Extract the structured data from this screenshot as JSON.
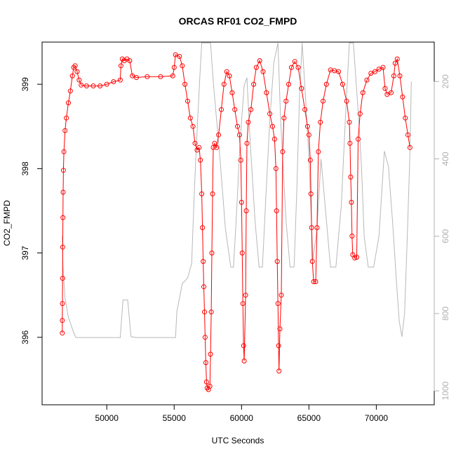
{
  "chart_data": {
    "type": "scatter",
    "title": "ORCAS RF01 CO2_FMPD",
    "xlabel": "UTC Seconds",
    "ylabel": "CO2_FMPD",
    "xlim": [
      45200,
      74300
    ],
    "ylim": [
      395.2,
      399.5
    ],
    "y2lim": [
      98,
      1036
    ],
    "x_ticks": [
      50000,
      55000,
      60000,
      65000,
      70000
    ],
    "x_tick_labels": [
      "50000",
      "55000",
      "60000",
      "65000",
      "70000"
    ],
    "y_ticks": [
      396,
      397,
      398,
      399
    ],
    "y_tick_labels": [
      "396",
      "397",
      "398",
      "399"
    ],
    "y2_ticks": [
      200,
      400,
      600,
      800,
      1000
    ],
    "y2_tick_labels": [
      "200",
      "400",
      "600",
      "800",
      "1000"
    ],
    "series": [
      {
        "role": "co2",
        "color": "#ff0000",
        "marker": "open-circle",
        "points": [
          [
            46700,
            396.05
          ],
          [
            46700,
            396.2
          ],
          [
            46710,
            396.4
          ],
          [
            46720,
            396.7
          ],
          [
            46730,
            397.07
          ],
          [
            46745,
            397.42
          ],
          [
            46760,
            397.72
          ],
          [
            46780,
            397.98
          ],
          [
            46820,
            398.2
          ],
          [
            46900,
            398.45
          ],
          [
            47000,
            398.6
          ],
          [
            47150,
            398.78
          ],
          [
            47300,
            398.92
          ],
          [
            47450,
            399.1
          ],
          [
            47550,
            399.2
          ],
          [
            47650,
            399.22
          ],
          [
            47800,
            399.15
          ],
          [
            47950,
            399.05
          ],
          [
            48100,
            398.99
          ],
          [
            48500,
            398.98
          ],
          [
            49000,
            398.98
          ],
          [
            49500,
            398.98
          ],
          [
            50000,
            399.0
          ],
          [
            50500,
            399.03
          ],
          [
            51000,
            399.05
          ],
          [
            51050,
            399.22
          ],
          [
            51150,
            399.3
          ],
          [
            51300,
            399.28
          ],
          [
            51500,
            399.3
          ],
          [
            51700,
            399.28
          ],
          [
            51900,
            399.1
          ],
          [
            52200,
            399.08
          ],
          [
            53000,
            399.09
          ],
          [
            54000,
            399.09
          ],
          [
            54900,
            399.1
          ],
          [
            55000,
            399.2
          ],
          [
            55100,
            399.35
          ],
          [
            55400,
            399.33
          ],
          [
            55600,
            399.22
          ],
          [
            55800,
            399.0
          ],
          [
            56000,
            398.8
          ],
          [
            56200,
            398.6
          ],
          [
            56400,
            398.5
          ],
          [
            56550,
            398.3
          ],
          [
            56700,
            398.22
          ],
          [
            56850,
            398.25
          ],
          [
            56950,
            398.1
          ],
          [
            57050,
            397.7
          ],
          [
            57100,
            397.3
          ],
          [
            57150,
            396.9
          ],
          [
            57200,
            396.6
          ],
          [
            57250,
            396.3
          ],
          [
            57300,
            396.0
          ],
          [
            57350,
            395.7
          ],
          [
            57400,
            395.47
          ],
          [
            57450,
            395.4
          ],
          [
            57550,
            395.38
          ],
          [
            57650,
            395.42
          ],
          [
            57700,
            395.8
          ],
          [
            57750,
            396.3
          ],
          [
            57800,
            397.0
          ],
          [
            57850,
            397.7
          ],
          [
            57900,
            398.25
          ],
          [
            58000,
            398.3
          ],
          [
            58150,
            398.25
          ],
          [
            58300,
            398.4
          ],
          [
            58500,
            398.7
          ],
          [
            58700,
            399.0
          ],
          [
            58900,
            399.15
          ],
          [
            59100,
            399.1
          ],
          [
            59300,
            398.9
          ],
          [
            59500,
            398.7
          ],
          [
            59700,
            398.5
          ],
          [
            59850,
            398.4
          ],
          [
            59950,
            398.1
          ],
          [
            60000,
            397.6
          ],
          [
            60050,
            397.0
          ],
          [
            60100,
            396.4
          ],
          [
            60150,
            395.9
          ],
          [
            60200,
            395.72
          ],
          [
            60300,
            396.5
          ],
          [
            60350,
            397.5
          ],
          [
            60400,
            398.3
          ],
          [
            60500,
            398.55
          ],
          [
            60700,
            398.7
          ],
          [
            60900,
            399.0
          ],
          [
            61100,
            399.2
          ],
          [
            61350,
            399.28
          ],
          [
            61600,
            399.15
          ],
          [
            61850,
            398.9
          ],
          [
            62100,
            398.65
          ],
          [
            62300,
            398.5
          ],
          [
            62450,
            398.35
          ],
          [
            62550,
            398.0
          ],
          [
            62600,
            397.5
          ],
          [
            62650,
            396.9
          ],
          [
            62700,
            396.4
          ],
          [
            62750,
            395.9
          ],
          [
            62780,
            395.6
          ],
          [
            62850,
            396.1
          ],
          [
            62950,
            396.5
          ],
          [
            63050,
            398.2
          ],
          [
            63150,
            398.6
          ],
          [
            63300,
            398.8
          ],
          [
            63500,
            399.0
          ],
          [
            63700,
            399.2
          ],
          [
            63950,
            399.27
          ],
          [
            64200,
            399.2
          ],
          [
            64450,
            398.95
          ],
          [
            64700,
            398.7
          ],
          [
            64900,
            398.5
          ],
          [
            65000,
            398.4
          ],
          [
            65100,
            398.1
          ],
          [
            65150,
            397.7
          ],
          [
            65200,
            397.3
          ],
          [
            65250,
            396.9
          ],
          [
            65350,
            396.66
          ],
          [
            65500,
            396.66
          ],
          [
            65600,
            397.3
          ],
          [
            65700,
            398.2
          ],
          [
            65850,
            398.55
          ],
          [
            66050,
            398.8
          ],
          [
            66300,
            399.0
          ],
          [
            66600,
            399.17
          ],
          [
            66900,
            399.16
          ],
          [
            67200,
            399.15
          ],
          [
            67500,
            399.0
          ],
          [
            67800,
            398.8
          ],
          [
            68000,
            398.55
          ],
          [
            68050,
            398.3
          ],
          [
            68100,
            397.9
          ],
          [
            68150,
            397.6
          ],
          [
            68200,
            397.2
          ],
          [
            68250,
            396.98
          ],
          [
            68400,
            396.94
          ],
          [
            68550,
            396.95
          ],
          [
            68650,
            398.35
          ],
          [
            68800,
            398.65
          ],
          [
            69000,
            398.9
          ],
          [
            69300,
            399.05
          ],
          [
            69600,
            399.13
          ],
          [
            69900,
            399.15
          ],
          [
            70200,
            399.18
          ],
          [
            70500,
            399.2
          ],
          [
            70650,
            398.95
          ],
          [
            70800,
            398.88
          ],
          [
            71100,
            398.9
          ],
          [
            71300,
            399.1
          ],
          [
            71400,
            399.25
          ],
          [
            71550,
            399.3
          ],
          [
            71750,
            399.1
          ],
          [
            71950,
            398.85
          ],
          [
            72150,
            398.6
          ],
          [
            72350,
            398.4
          ],
          [
            72500,
            398.25
          ]
        ]
      },
      {
        "role": "pressure",
        "color": "#b8b8b8",
        "marker": "line",
        "axis": "right",
        "points": [
          [
            46700,
            600
          ],
          [
            46750,
            680
          ],
          [
            46900,
            760
          ],
          [
            47150,
            810
          ],
          [
            47500,
            845
          ],
          [
            47700,
            862
          ],
          [
            48500,
            862
          ],
          [
            50000,
            862
          ],
          [
            51000,
            862
          ],
          [
            51200,
            765
          ],
          [
            51550,
            765
          ],
          [
            51800,
            860
          ],
          [
            52200,
            862
          ],
          [
            54000,
            862
          ],
          [
            55100,
            862
          ],
          [
            55200,
            795
          ],
          [
            55600,
            723
          ],
          [
            56000,
            708
          ],
          [
            56300,
            670
          ],
          [
            56500,
            480
          ],
          [
            56700,
            330
          ],
          [
            56900,
            190
          ],
          [
            57050,
            100
          ],
          [
            57700,
            100
          ],
          [
            57900,
            200
          ],
          [
            58400,
            400
          ],
          [
            58800,
            580
          ],
          [
            59200,
            680
          ],
          [
            59400,
            680
          ],
          [
            59600,
            560
          ],
          [
            59900,
            350
          ],
          [
            60200,
            210
          ],
          [
            60400,
            190
          ],
          [
            60600,
            330
          ],
          [
            61000,
            560
          ],
          [
            61300,
            680
          ],
          [
            61550,
            680
          ],
          [
            61800,
            500
          ],
          [
            62100,
            300
          ],
          [
            62400,
            150
          ],
          [
            62700,
            100
          ],
          [
            62900,
            300
          ],
          [
            63300,
            560
          ],
          [
            63600,
            680
          ],
          [
            63900,
            680
          ],
          [
            64100,
            480
          ],
          [
            64300,
            240
          ],
          [
            64500,
            100
          ],
          [
            64750,
            240
          ],
          [
            65000,
            400
          ],
          [
            65300,
            660
          ],
          [
            65600,
            580
          ],
          [
            65900,
            400
          ],
          [
            66200,
            520
          ],
          [
            66600,
            680
          ],
          [
            67000,
            680
          ],
          [
            67400,
            520
          ],
          [
            67700,
            300
          ],
          [
            68000,
            100
          ],
          [
            68300,
            100
          ],
          [
            68700,
            300
          ],
          [
            68900,
            420
          ],
          [
            69100,
            600
          ],
          [
            69400,
            680
          ],
          [
            69800,
            680
          ],
          [
            70200,
            600
          ],
          [
            70600,
            380
          ],
          [
            70900,
            420
          ],
          [
            71200,
            560
          ],
          [
            71500,
            720
          ],
          [
            71700,
            820
          ],
          [
            71900,
            860
          ],
          [
            72100,
            800
          ],
          [
            72300,
            600
          ],
          [
            72500,
            380
          ],
          [
            72600,
            200
          ]
        ]
      }
    ]
  }
}
